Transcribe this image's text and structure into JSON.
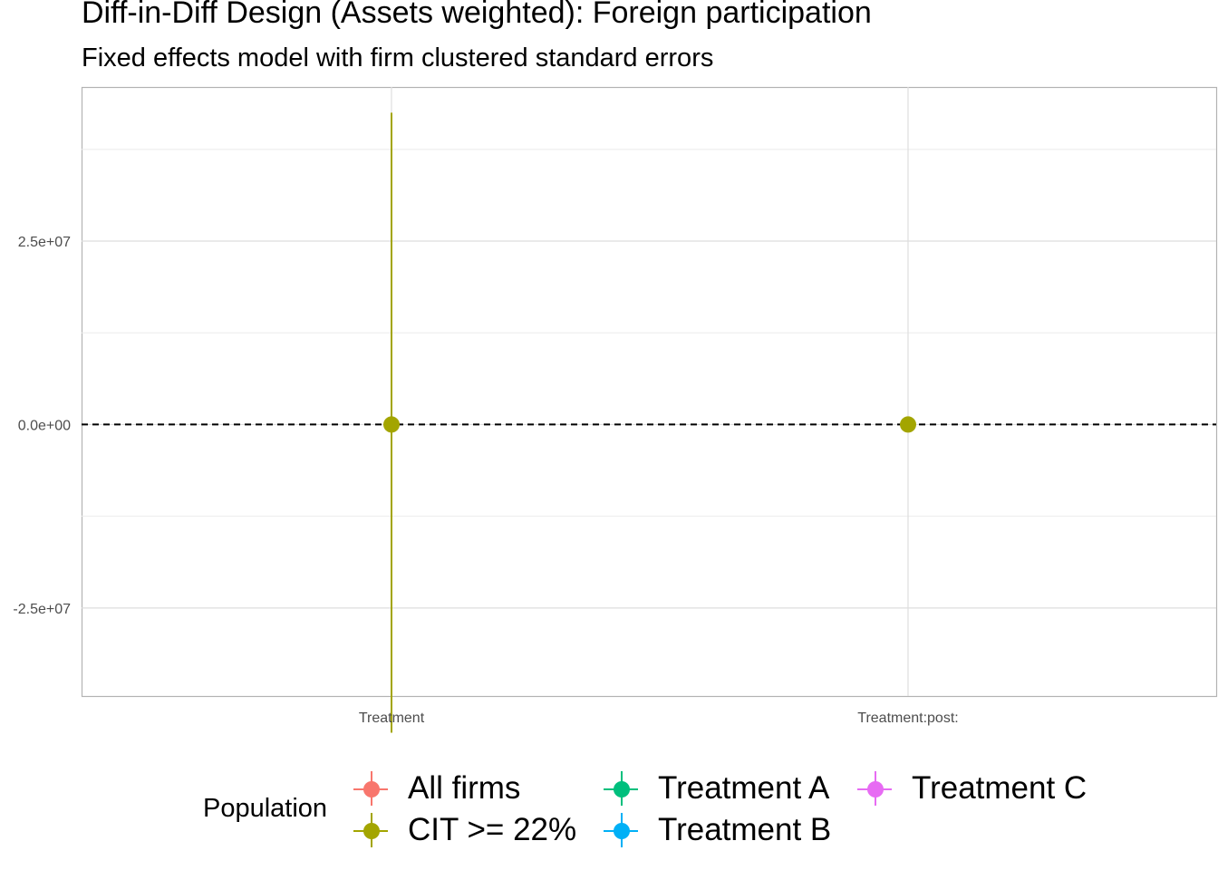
{
  "title": "Diff-in-Diff Design (Assets weighted): Foreign participation",
  "subtitle": "Fixed effects model with firm clustered standard errors",
  "chart_data": {
    "type": "scatter",
    "variant": "coefficient plot with confidence intervals",
    "title": "Diff-in-Diff Design (Assets weighted): Foreign participation",
    "subtitle": "Fixed effects model with firm clustered standard errors",
    "xlabel": "",
    "ylabel": "",
    "categories": [
      "Treatment",
      "Treatment:post:"
    ],
    "ylim": [
      -37000000,
      46000000
    ],
    "yticks": [
      -25000000,
      0,
      25000000
    ],
    "ytick_labels": [
      "-2.5e+07",
      "0.0e+00",
      "2.5e+07"
    ],
    "reference_line": {
      "y": 0,
      "style": "dashed",
      "color": "#000000"
    },
    "grid": true,
    "legend": {
      "title": "Population",
      "position": "bottom",
      "entries": [
        {
          "name": "All firms",
          "color": "#F8766D"
        },
        {
          "name": "CIT >= 22%",
          "color": "#A3A500"
        },
        {
          "name": "Treatment A",
          "color": "#00BF7D"
        },
        {
          "name": "Treatment B",
          "color": "#00B0F6"
        },
        {
          "name": "Treatment C",
          "color": "#E76BF3"
        }
      ]
    },
    "series": [
      {
        "name": "CIT >= 22%",
        "color": "#A3A500",
        "points": [
          {
            "x": "Treatment",
            "estimate": 0,
            "ci_low": -42000000,
            "ci_high": 42500000
          },
          {
            "x": "Treatment:post:",
            "estimate": 0,
            "ci_low": 0,
            "ci_high": 0
          }
        ]
      }
    ]
  }
}
